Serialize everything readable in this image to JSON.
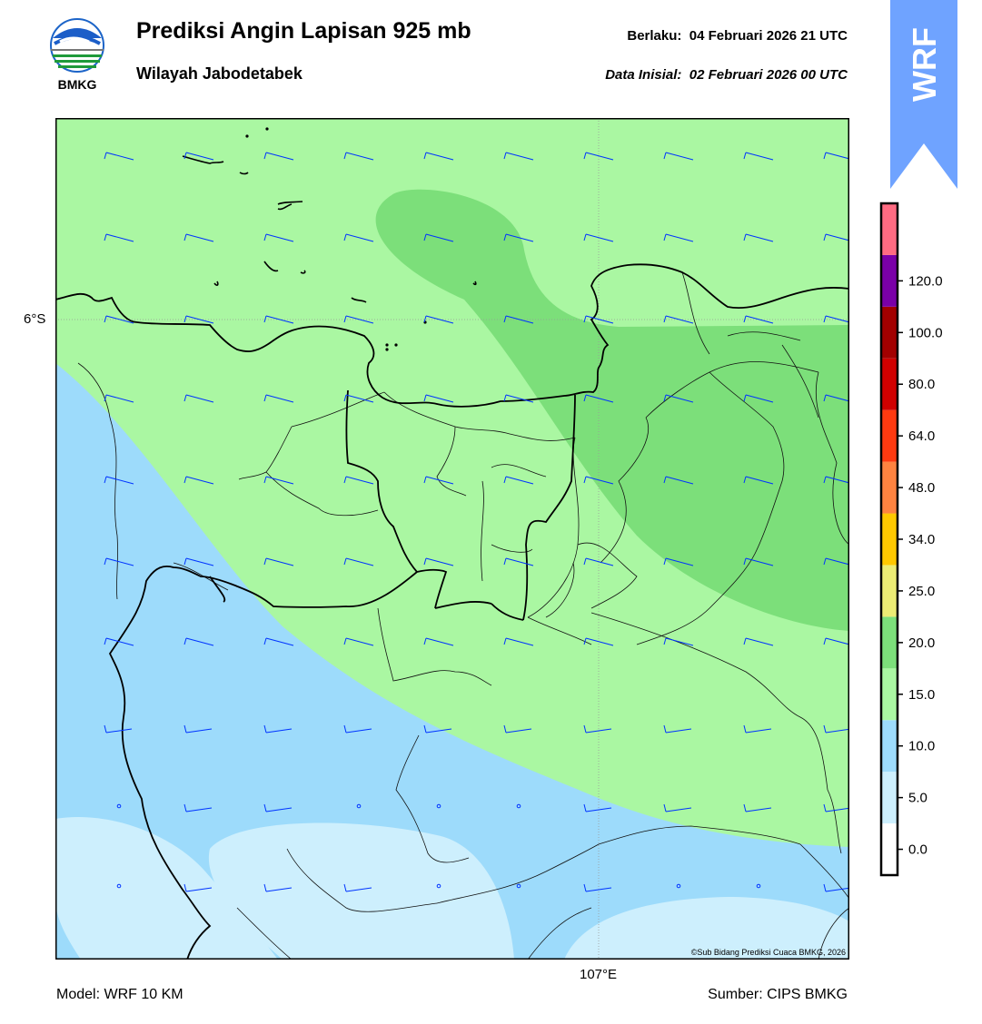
{
  "header": {
    "logo_text": "BMKG",
    "title": "Prediksi Angin Lapisan 925 mb",
    "subtitle": "Wilayah Jabodetabek",
    "valid_label": "Berlaku:",
    "valid_time": "04 Februari 2026 21 UTC",
    "init_label": "Data Inisial:",
    "init_time": "02 Februari 2026 00 UTC"
  },
  "model_banner": {
    "label": "WRF",
    "color": "#6fa3ff"
  },
  "map": {
    "lat_label": "6°S",
    "lon_label": "107°E",
    "copyright": "©Sub Bidang Prediksi Cuaca BMKG, 2026",
    "fill_colors": {
      "calm": "#cdeffd",
      "light": "#9ddbfb",
      "moderate": "#aaf7a2",
      "fresh": "#7cdf7a"
    },
    "barb_color": "#0033ff",
    "coast_color": "#000000"
  },
  "colorbar": {
    "ticks": [
      "0.0",
      "5.0",
      "10.0",
      "15.0",
      "20.0",
      "25.0",
      "34.0",
      "48.0",
      "64.0",
      "80.0",
      "100.0",
      "120.0"
    ],
    "colors": [
      "#ffffff",
      "#cdeffd",
      "#9ddbfb",
      "#aaf7a2",
      "#7cdf7a",
      "#ecec74",
      "#ffc800",
      "#ff8340",
      "#ff3a10",
      "#d00000",
      "#a20000",
      "#7a00a8",
      "#ff6b82"
    ]
  },
  "footer": {
    "model": "Model: WRF 10 KM",
    "source": "Sumber: CIPS BMKG"
  }
}
